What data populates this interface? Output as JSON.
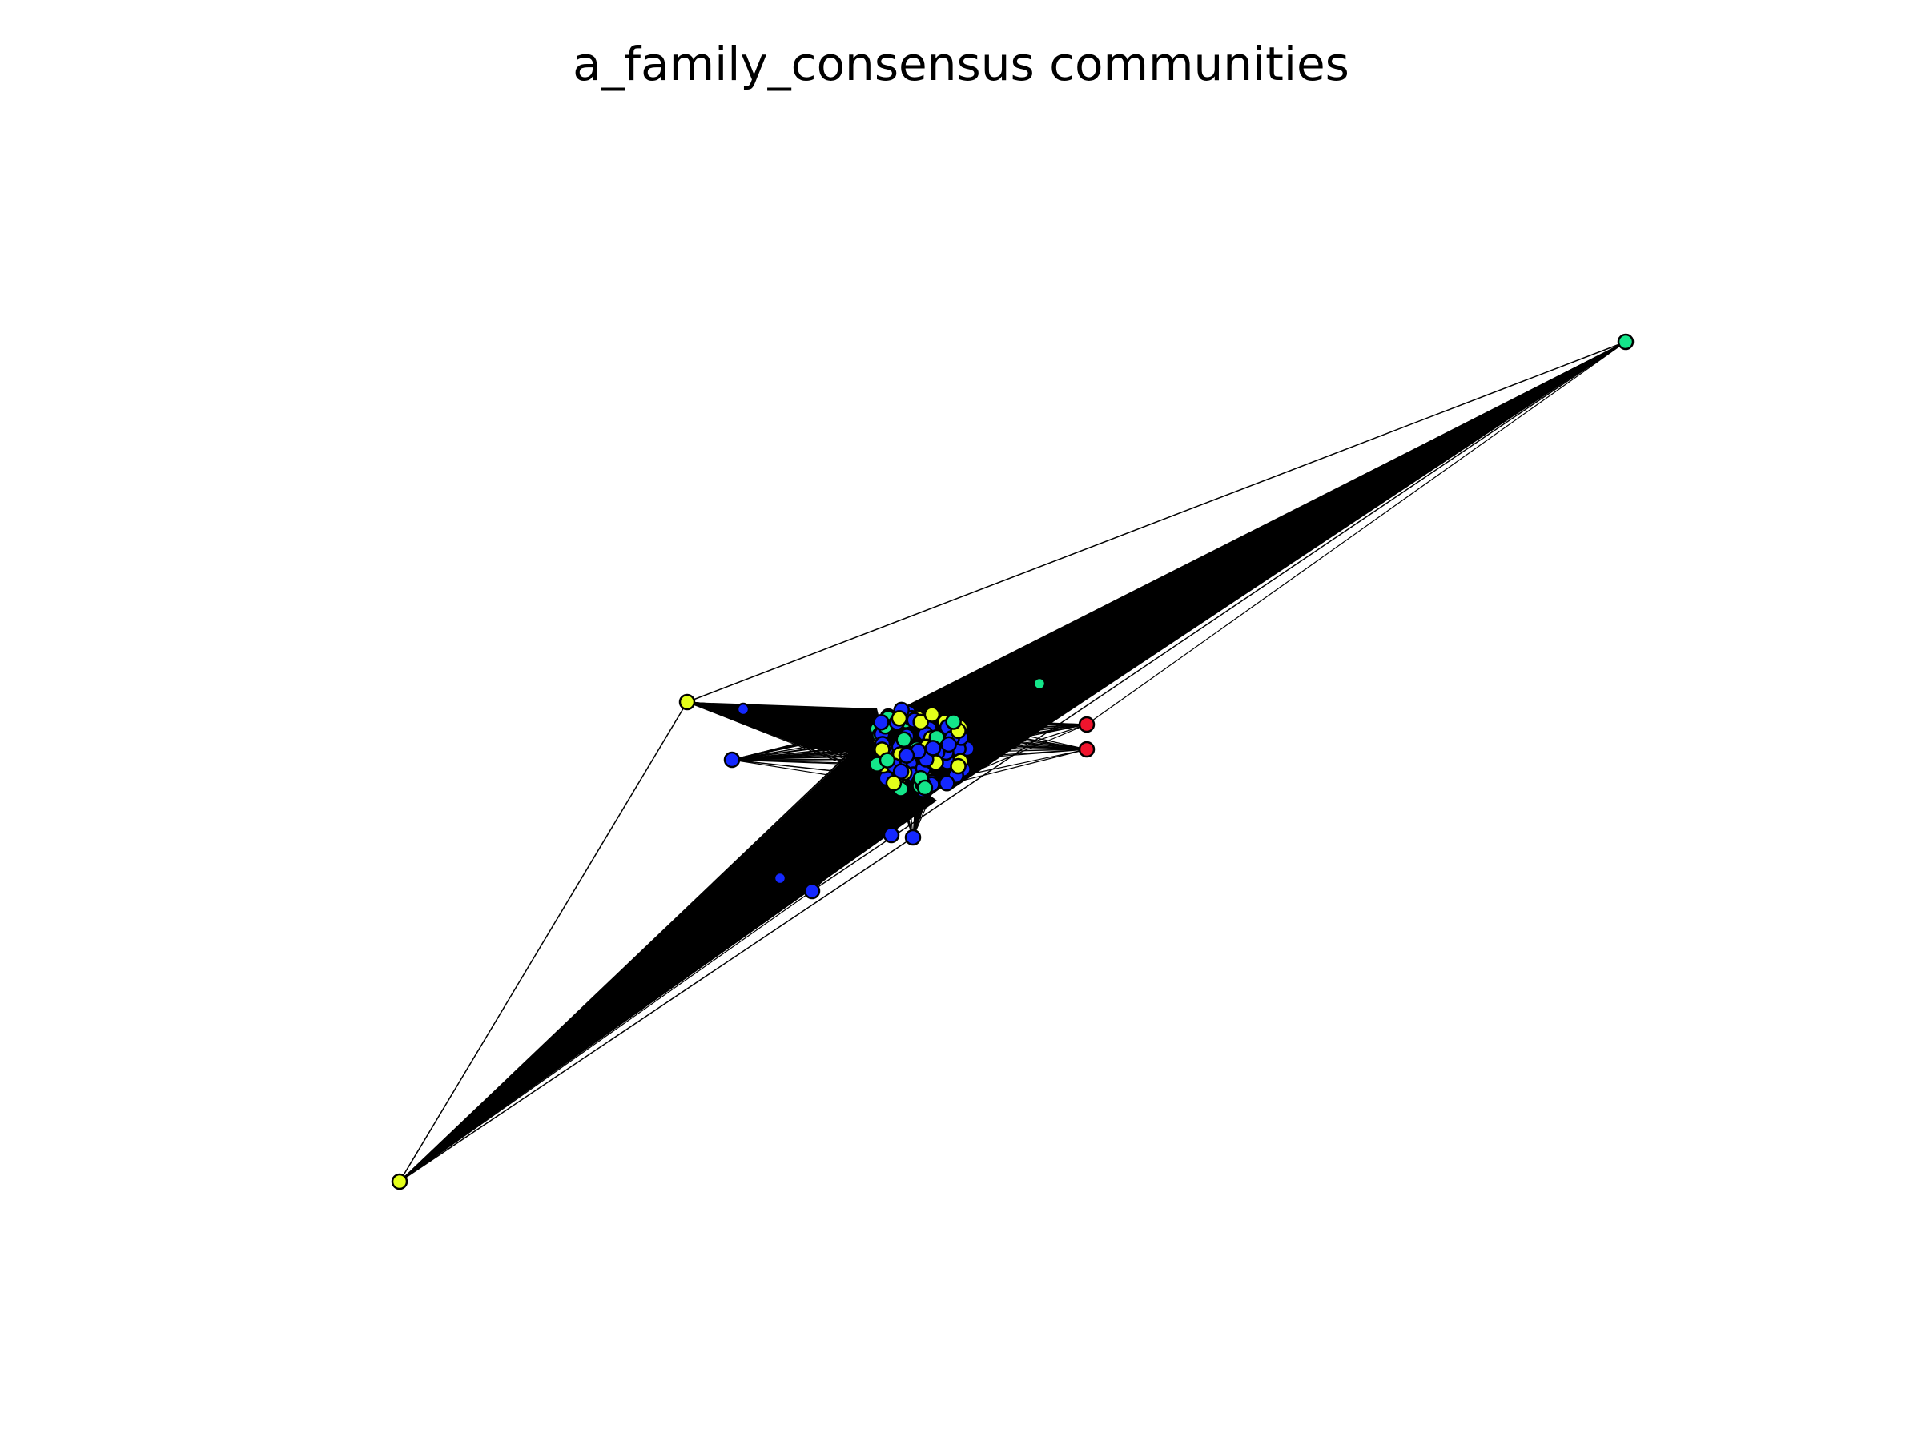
{
  "title": "a_family_consensus communities",
  "colors": {
    "background": "#ffffff",
    "edge": "#000000",
    "node_outline": "#000000",
    "community_blue": "#1428ff",
    "community_yellow": "#e4ff1a",
    "community_green": "#14e68a",
    "community_red": "#f0142d"
  },
  "legend": null,
  "axes": "off"
}
